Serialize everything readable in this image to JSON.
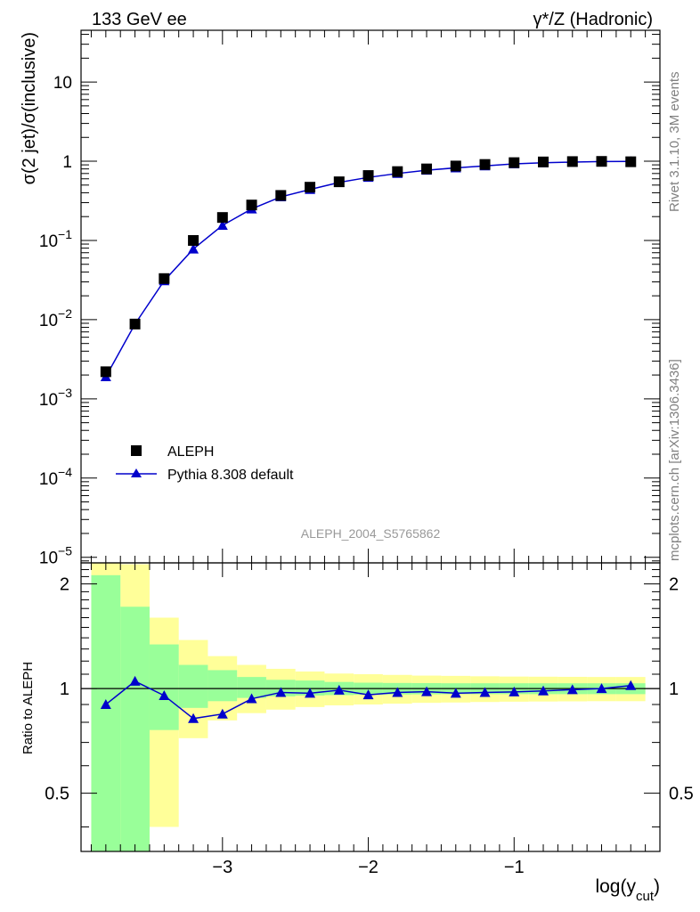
{
  "header": {
    "left_title": "133 GeV ee",
    "right_title": "γ*/Z (Hadronic)"
  },
  "side_labels": {
    "rivet": "Rivet 3.1.10,  3M events",
    "mcplots": "mcplots.cern.ch [arXiv:1306.3436]"
  },
  "analysis_label": "ALEPH_2004_S5765862",
  "legend": {
    "data_label": "ALEPH",
    "mc_label": "Pythia 8.308 default"
  },
  "colors": {
    "data": "#000000",
    "mc": "#0000cc",
    "band_inner": "#99ff99",
    "band_outer": "#ffff99",
    "side_text": "#808080"
  },
  "chart_data": [
    {
      "type": "scatter",
      "panel": "main",
      "ylabel": "σ(2 jet)/σ(inclusive)",
      "yscale": "log",
      "ylim": [
        8.5e-06,
        45
      ],
      "y_tick_labels": [
        "10^-5",
        "10^-4",
        "10^-3",
        "10^-2",
        "10^-1",
        "1",
        "10"
      ],
      "legend_position": "bottom-left",
      "x": [
        -3.8,
        -3.6,
        -3.4,
        -3.2,
        -3.0,
        -2.8,
        -2.6,
        -2.4,
        -2.2,
        -2.0,
        -1.8,
        -1.6,
        -1.4,
        -1.2,
        -1.0,
        -0.8,
        -0.6,
        -0.4,
        -0.2
      ],
      "series": [
        {
          "name": "ALEPH",
          "marker": "square",
          "values": [
            0.0022,
            0.0088,
            0.033,
            0.1,
            0.195,
            0.28,
            0.37,
            0.47,
            0.55,
            0.66,
            0.74,
            0.8,
            0.87,
            0.91,
            0.96,
            0.98,
            0.99,
            0.995,
            0.985
          ]
        },
        {
          "name": "Pythia 8.308 default",
          "marker": "triangle",
          "values": [
            0.0019,
            0.0088,
            0.031,
            0.078,
            0.155,
            0.25,
            0.355,
            0.44,
            0.54,
            0.625,
            0.7,
            0.77,
            0.825,
            0.875,
            0.925,
            0.955,
            0.975,
            0.99,
            0.995
          ]
        }
      ]
    },
    {
      "type": "line",
      "panel": "ratio",
      "xlabel": "log(y",
      "xlabel_sub": "cut",
      "xlabel_close": ")",
      "ylabel": "Ratio to ALEPH",
      "yscale": "log",
      "ylim": [
        0.34,
        2.3
      ],
      "xlim": [
        -3.97,
        0.0
      ],
      "x_ticks": [
        -3,
        -2,
        -1
      ],
      "x_tick_labels": [
        "−3",
        "−2",
        "−1"
      ],
      "y_ticks": [
        0.5,
        1,
        2
      ],
      "y_tick_labels": [
        "0.5",
        "1",
        "2"
      ],
      "bin_edges": [
        -3.9,
        -3.7,
        -3.5,
        -3.3,
        -3.1,
        -2.9,
        -2.7,
        -2.5,
        -2.3,
        -2.1,
        -1.9,
        -1.7,
        -1.5,
        -1.3,
        -1.1,
        -0.9,
        -0.7,
        -0.5,
        -0.3,
        -0.1
      ],
      "band_inner": [
        [
          0.1,
          2.12
        ],
        [
          0.1,
          1.72
        ],
        [
          0.76,
          1.34
        ],
        [
          0.88,
          1.17
        ],
        [
          0.92,
          1.13
        ],
        [
          0.94,
          1.08
        ],
        [
          0.95,
          1.06
        ],
        [
          0.955,
          1.055
        ],
        [
          0.958,
          1.045
        ],
        [
          0.96,
          1.04
        ],
        [
          0.962,
          1.038
        ],
        [
          0.963,
          1.037
        ],
        [
          0.964,
          1.036
        ],
        [
          0.964,
          1.036
        ],
        [
          0.964,
          1.036
        ],
        [
          0.964,
          1.036
        ],
        [
          0.964,
          1.036
        ],
        [
          0.964,
          1.036
        ],
        [
          0.964,
          1.036
        ]
      ],
      "band_outer": [
        [
          0.1,
          2.5
        ],
        [
          0.1,
          2.28
        ],
        [
          0.4,
          1.6
        ],
        [
          0.72,
          1.38
        ],
        [
          0.81,
          1.24
        ],
        [
          0.85,
          1.17
        ],
        [
          0.87,
          1.14
        ],
        [
          0.885,
          1.12
        ],
        [
          0.895,
          1.105
        ],
        [
          0.9,
          1.1
        ],
        [
          0.905,
          1.095
        ],
        [
          0.91,
          1.09
        ],
        [
          0.912,
          1.088
        ],
        [
          0.915,
          1.085
        ],
        [
          0.917,
          1.083
        ],
        [
          0.918,
          1.082
        ],
        [
          0.919,
          1.081
        ],
        [
          0.92,
          1.08
        ],
        [
          0.92,
          1.08
        ]
      ],
      "series": [
        {
          "name": "Pythia 8.308 default",
          "marker": "triangle",
          "x": [
            -3.8,
            -3.6,
            -3.4,
            -3.2,
            -3.0,
            -2.8,
            -2.6,
            -2.4,
            -2.2,
            -2.0,
            -1.8,
            -1.6,
            -1.4,
            -1.2,
            -1.0,
            -0.8,
            -0.6,
            -0.4,
            -0.2
          ],
          "values": [
            0.9,
            1.05,
            0.955,
            0.82,
            0.845,
            0.935,
            0.975,
            0.97,
            0.99,
            0.96,
            0.975,
            0.98,
            0.97,
            0.975,
            0.978,
            0.985,
            0.993,
            1.0,
            1.02
          ]
        }
      ]
    }
  ]
}
